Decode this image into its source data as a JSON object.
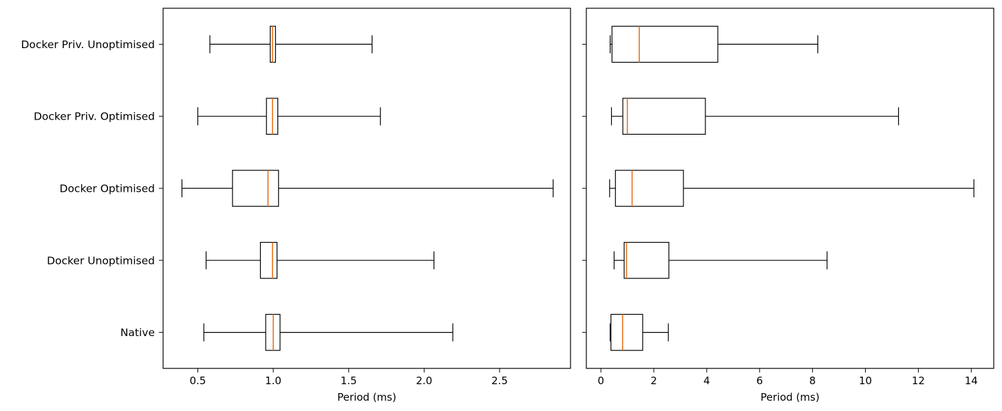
{
  "chart_data": [
    {
      "type": "boxplot",
      "orientation": "horizontal",
      "xlabel": "Period (ms)",
      "ylabel": "",
      "xlim": [
        0.27,
        2.97
      ],
      "xticks": [
        0.5,
        1.0,
        1.5,
        2.0,
        2.5
      ],
      "xtick_labels": [
        "0.5",
        "1.0",
        "1.5",
        "2.0",
        "2.5"
      ],
      "categories": [
        "Native",
        "Docker Unoptimised",
        "Docker Optimised",
        "Docker Priv. Optimised",
        "Docker Priv. Unoptimised"
      ],
      "boxes": [
        {
          "whisker_low": 0.54,
          "q1": 0.95,
          "median": 1.0,
          "q3": 1.045,
          "whisker_high": 2.19
        },
        {
          "whisker_low": 0.555,
          "q1": 0.915,
          "median": 0.995,
          "q3": 1.025,
          "whisker_high": 2.065
        },
        {
          "whisker_low": 0.395,
          "q1": 0.73,
          "median": 0.965,
          "q3": 1.035,
          "whisker_high": 2.855
        },
        {
          "whisker_low": 0.5,
          "q1": 0.955,
          "median": 0.995,
          "q3": 1.03,
          "whisker_high": 1.71
        },
        {
          "whisker_low": 0.58,
          "q1": 0.98,
          "median": 0.995,
          "q3": 1.015,
          "whisker_high": 1.655
        }
      ]
    },
    {
      "type": "boxplot",
      "orientation": "horizontal",
      "xlabel": "Period (ms)",
      "ylabel": "",
      "xlim": [
        -0.55,
        14.85
      ],
      "xticks": [
        0,
        2,
        4,
        6,
        8,
        10,
        12,
        14
      ],
      "xtick_labels": [
        "0",
        "2",
        "4",
        "6",
        "8",
        "10",
        "12",
        "14"
      ],
      "categories": [
        "Native",
        "Docker Unoptimised",
        "Docker Optimised",
        "Docker Priv. Optimised",
        "Docker Priv. Unoptimised"
      ],
      "boxes": [
        {
          "whisker_low": 0.35,
          "q1": 0.38,
          "median": 0.82,
          "q3": 1.58,
          "whisker_high": 2.55
        },
        {
          "whisker_low": 0.5,
          "q1": 0.88,
          "median": 0.97,
          "q3": 2.57,
          "whisker_high": 8.55
        },
        {
          "whisker_low": 0.33,
          "q1": 0.55,
          "median": 1.18,
          "q3": 3.12,
          "whisker_high": 14.1
        },
        {
          "whisker_low": 0.4,
          "q1": 0.83,
          "median": 1.0,
          "q3": 3.95,
          "whisker_high": 11.25
        },
        {
          "whisker_low": 0.35,
          "q1": 0.42,
          "median": 1.45,
          "q3": 4.42,
          "whisker_high": 8.2
        }
      ]
    }
  ],
  "colors": {
    "box_edge": "#000000",
    "median": "#e8711a",
    "background": "#ffffff"
  }
}
